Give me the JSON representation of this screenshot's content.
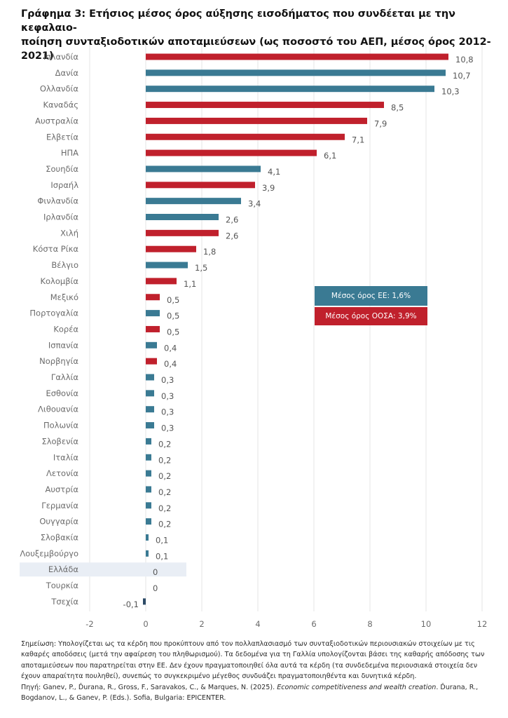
{
  "title": {
    "line1": "Γράφημα 3: Ετήσιος μέσος όρος αύξησης εισοδήματος που συνδέεται με την κεφαλαιο-",
    "line2": "ποίηση συνταξιοδοτικών αποταμιεύσεων (ως ποσοστό του ΑΕΠ, μέσος όρος 2012-2021)"
  },
  "colors": {
    "oecd": "#c0202c",
    "eu": "#3a7a93",
    "highlight": "#e9eef5",
    "czech": "#2c4a66"
  },
  "chart_data": {
    "type": "bar",
    "orientation": "horizontal",
    "categories": [
      "Ισλανδία",
      "Δανία",
      "Ολλανδία",
      "Καναδάς",
      "Αυστραλία",
      "Ελβετία",
      "ΗΠΑ",
      "Σουηδία",
      "Ισραήλ",
      "Φινλανδία",
      "Ιρλανδία",
      "Χιλή",
      "Κόστα Ρίκα",
      "Βέλγιο",
      "Κολομβία",
      "Μεξικό",
      "Πορτογαλία",
      "Κορέα",
      "Ισπανία",
      "Νορβηγία",
      "Γαλλία",
      "Εσθονία",
      "Λιθουανία",
      "Πολωνία",
      "Σλοβενία",
      "Ιταλία",
      "Λετονία",
      "Αυστρία",
      "Γερμανία",
      "Ουγγαρία",
      "Σλοβακία",
      "Λουξεμβούργο",
      "Ελλάδα",
      "Τουρκία",
      "Τσεχία"
    ],
    "values": [
      10.8,
      10.7,
      10.3,
      8.5,
      7.9,
      7.1,
      6.1,
      4.1,
      3.9,
      3.4,
      2.6,
      2.6,
      1.8,
      1.5,
      1.1,
      0.5,
      0.5,
      0.5,
      0.4,
      0.4,
      0.3,
      0.3,
      0.3,
      0.3,
      0.2,
      0.2,
      0.2,
      0.2,
      0.2,
      0.2,
      0.1,
      0.1,
      0,
      0,
      -0.1
    ],
    "value_labels": [
      "10,8",
      "10,7",
      "10,3",
      "8,5",
      "7,9",
      "7,1",
      "6,1",
      "4,1",
      "3,9",
      "3,4",
      "2,6",
      "2,6",
      "1,8",
      "1,5",
      "1,1",
      "0,5",
      "0,5",
      "0,5",
      "0,4",
      "0,4",
      "0,3",
      "0,3",
      "0,3",
      "0,3",
      "0,2",
      "0,2",
      "0,2",
      "0,2",
      "0,2",
      "0,2",
      "0,1",
      "0,1",
      "0",
      "0",
      "-0,1"
    ],
    "group": [
      "oecd",
      "eu",
      "eu",
      "oecd",
      "oecd",
      "oecd",
      "oecd",
      "eu",
      "oecd",
      "eu",
      "eu",
      "oecd",
      "oecd",
      "eu",
      "oecd",
      "oecd",
      "eu",
      "oecd",
      "eu",
      "oecd",
      "eu",
      "eu",
      "eu",
      "eu",
      "eu",
      "eu",
      "eu",
      "eu",
      "eu",
      "eu",
      "eu",
      "eu",
      "eu",
      "oecd",
      "eu"
    ],
    "highlighted": "Ελλάδα",
    "xlim": [
      -2,
      12
    ],
    "xticks": [
      "-2",
      "0",
      "2",
      "4",
      "6",
      "8",
      "10",
      "12"
    ],
    "xtick_values": [
      -2,
      0,
      2,
      4,
      6,
      8,
      10,
      12
    ],
    "grid": true,
    "legend": [
      {
        "label": "Μέσος όρος ΕΕ: 1,6%",
        "group": "eu"
      },
      {
        "label": "Μέσος όρος ΟΟΣΑ: 3,9%",
        "group": "oecd"
      }
    ]
  },
  "note": {
    "text1": "Σημείωση: Υπολογίζεται ως τα κέρδη που προκύπτουν από τον πολλαπλασιασμό των συνταξιοδοτικών περιουσιακών στοιχείων με τις καθαρές αποδόσεις (μετά την αφαίρεση του πληθωρισμού). Τα δεδομένα για τη Γαλλία υπολογίζονται βάσει της καθαρής απόδοσης των αποταμιεύσεων που παρατηρείται στην ΕΕ. Δεν έχουν πραγματοποιηθεί όλα αυτά τα κέρδη (τα συνδεδεμένα περιουσιακά στοιχεία δεν έχουν απαραίτητα πουληθεί), συνεπώς το συγκεκριμένο μέγεθος συνδυάζει πραγματοποιηθέντα και δυνητικά κέρδη.",
    "source_prefix": "Πηγή: Ganev, P., Ďurana, R., Gross, F., Saravakos, C., & Marques, N. (2025). ",
    "source_title": "Economic competitiveness and wealth creation",
    "source_suffix": ". Ďurana, R., Bogdanov, L., & Ganev, P. (Eds.). Sofia, Bulgaria: EPICENTER."
  }
}
